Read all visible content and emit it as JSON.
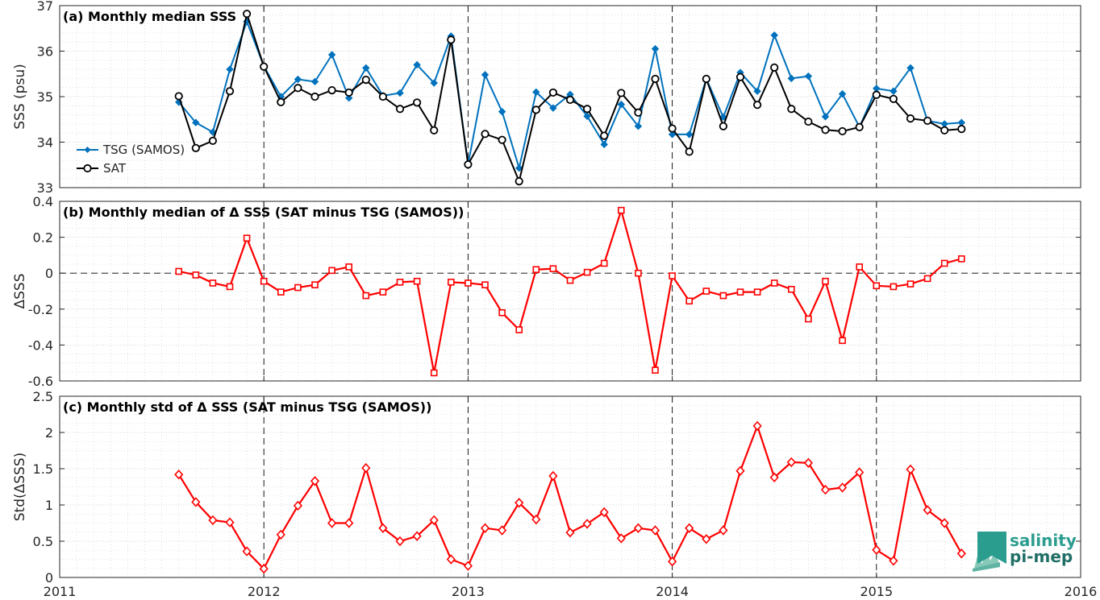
{
  "chart_data": [
    {
      "type": "line",
      "title": "(a) Monthly median SSS",
      "xlabel": "",
      "ylabel": "SSS (psu)",
      "xlim": [
        2011,
        2016
      ],
      "ylim": [
        33,
        37
      ],
      "yticks": [
        33,
        34,
        35,
        36,
        37
      ],
      "grid": true,
      "legend_position": "left",
      "series": [
        {
          "name": "TSG (SAMOS)",
          "color": "#0072BD",
          "marker": "diamond",
          "x": [
            "2011-08",
            "2011-09",
            "2011-10",
            "2011-11",
            "2011-12",
            "2012-01",
            "2012-02",
            "2012-03",
            "2012-04",
            "2012-05",
            "2012-06",
            "2012-07",
            "2012-08",
            "2012-09",
            "2012-10",
            "2012-11",
            "2012-12",
            "2013-01",
            "2013-02",
            "2013-03",
            "2013-04",
            "2013-05",
            "2013-06",
            "2013-07",
            "2013-08",
            "2013-09",
            "2013-10",
            "2013-11",
            "2013-12",
            "2014-01",
            "2014-02",
            "2014-03",
            "2014-04",
            "2014-05",
            "2014-06",
            "2014-07",
            "2014-08",
            "2014-09",
            "2014-10",
            "2014-11",
            "2014-12",
            "2015-01",
            "2015-02",
            "2015-03",
            "2015-04",
            "2015-05",
            "2015-06"
          ],
          "values": [
            34.88,
            34.43,
            34.22,
            35.6,
            36.65,
            35.67,
            35.0,
            35.38,
            35.33,
            35.92,
            34.97,
            35.63,
            35.02,
            35.08,
            35.7,
            35.3,
            36.33,
            33.51,
            35.48,
            34.67,
            33.43,
            35.1,
            34.75,
            35.05,
            34.57,
            33.95,
            34.83,
            34.35,
            36.05,
            34.17,
            34.17,
            35.39,
            34.55,
            35.53,
            35.12,
            36.35,
            35.4,
            35.45,
            34.56,
            35.06,
            34.33,
            35.18,
            35.12,
            35.63,
            34.47,
            34.4,
            34.43
          ]
        },
        {
          "name": "SAT",
          "color": "#000000",
          "marker": "circle",
          "x": [
            "2011-08",
            "2011-09",
            "2011-10",
            "2011-11",
            "2011-12",
            "2012-01",
            "2012-02",
            "2012-03",
            "2012-04",
            "2012-05",
            "2012-06",
            "2012-07",
            "2012-08",
            "2012-09",
            "2012-10",
            "2012-11",
            "2012-12",
            "2013-01",
            "2013-02",
            "2013-03",
            "2013-04",
            "2013-05",
            "2013-06",
            "2013-07",
            "2013-08",
            "2013-09",
            "2013-10",
            "2013-11",
            "2013-12",
            "2014-01",
            "2014-02",
            "2014-03",
            "2014-04",
            "2014-05",
            "2014-06",
            "2014-07",
            "2014-08",
            "2014-09",
            "2014-10",
            "2014-11",
            "2014-12",
            "2015-01",
            "2015-02",
            "2015-03",
            "2015-04",
            "2015-05",
            "2015-06"
          ],
          "values": [
            35.01,
            33.87,
            34.03,
            35.12,
            36.82,
            35.66,
            34.88,
            35.19,
            35.0,
            35.14,
            35.09,
            35.37,
            35.0,
            34.73,
            34.87,
            34.26,
            36.25,
            33.51,
            34.18,
            34.05,
            33.14,
            34.71,
            35.09,
            34.93,
            34.73,
            34.14,
            35.08,
            34.65,
            35.39,
            34.3,
            33.79,
            35.39,
            34.35,
            35.43,
            34.82,
            35.64,
            34.73,
            34.45,
            34.27,
            34.24,
            34.33,
            35.04,
            34.95,
            34.52,
            34.47,
            34.26,
            34.29
          ]
        }
      ]
    },
    {
      "type": "line",
      "title": "(b) Monthly median of Δ SSS (SAT minus TSG (SAMOS))",
      "xlabel": "",
      "ylabel": "ΔSSS",
      "xlim": [
        2011,
        2016
      ],
      "ylim": [
        -0.6,
        0.4
      ],
      "yticks": [
        -0.6,
        -0.4,
        -0.2,
        0,
        0.2,
        0.4
      ],
      "grid": true,
      "zero_line": true,
      "series": [
        {
          "name": "",
          "color": "#FF0000",
          "marker": "square",
          "x": [
            "2011-08",
            "2011-09",
            "2011-10",
            "2011-11",
            "2011-12",
            "2012-01",
            "2012-02",
            "2012-03",
            "2012-04",
            "2012-05",
            "2012-06",
            "2012-07",
            "2012-08",
            "2012-09",
            "2012-10",
            "2012-11",
            "2012-12",
            "2013-01",
            "2013-02",
            "2013-03",
            "2013-04",
            "2013-05",
            "2013-06",
            "2013-07",
            "2013-08",
            "2013-09",
            "2013-10",
            "2013-11",
            "2013-12",
            "2014-01",
            "2014-02",
            "2014-03",
            "2014-04",
            "2014-05",
            "2014-06",
            "2014-07",
            "2014-08",
            "2014-09",
            "2014-10",
            "2014-11",
            "2014-12",
            "2015-01",
            "2015-02",
            "2015-03",
            "2015-04",
            "2015-05",
            "2015-06"
          ],
          "values": [
            0.01,
            -0.01,
            -0.055,
            -0.075,
            0.195,
            -0.045,
            -0.105,
            -0.08,
            -0.065,
            0.015,
            0.035,
            -0.125,
            -0.105,
            -0.05,
            -0.045,
            -0.555,
            -0.05,
            -0.055,
            -0.065,
            -0.22,
            -0.315,
            0.02,
            0.025,
            -0.04,
            0.005,
            0.055,
            0.35,
            0.0,
            -0.54,
            -0.015,
            -0.155,
            -0.1,
            -0.125,
            -0.105,
            -0.105,
            -0.055,
            -0.09,
            -0.255,
            -0.045,
            -0.375,
            0.035,
            -0.07,
            -0.075,
            -0.06,
            -0.03,
            0.055,
            0.08
          ]
        }
      ]
    },
    {
      "type": "line",
      "title": "(c) Monthly std of Δ SSS (SAT minus TSG (SAMOS))",
      "xlabel": "",
      "ylabel": "Std(ΔSSS)",
      "xlim": [
        2011,
        2016
      ],
      "ylim": [
        0,
        2.5
      ],
      "yticks": [
        0,
        0.5,
        1,
        1.5,
        2,
        2.5
      ],
      "xticks": [
        2011,
        2012,
        2013,
        2014,
        2015,
        2016
      ],
      "grid": true,
      "series": [
        {
          "name": "",
          "color": "#FF0000",
          "marker": "diamond-open",
          "x": [
            "2011-08",
            "2011-09",
            "2011-10",
            "2011-11",
            "2011-12",
            "2012-01",
            "2012-02",
            "2012-03",
            "2012-04",
            "2012-05",
            "2012-06",
            "2012-07",
            "2012-08",
            "2012-09",
            "2012-10",
            "2012-11",
            "2012-12",
            "2013-01",
            "2013-02",
            "2013-03",
            "2013-04",
            "2013-05",
            "2013-06",
            "2013-07",
            "2013-08",
            "2013-09",
            "2013-10",
            "2013-11",
            "2013-12",
            "2014-01",
            "2014-02",
            "2014-03",
            "2014-04",
            "2014-05",
            "2014-06",
            "2014-07",
            "2014-08",
            "2014-09",
            "2014-10",
            "2014-11",
            "2014-12",
            "2015-01",
            "2015-02",
            "2015-03",
            "2015-04",
            "2015-05",
            "2015-06"
          ],
          "values": [
            1.42,
            1.04,
            0.79,
            0.76,
            0.36,
            0.12,
            0.59,
            0.99,
            1.33,
            0.75,
            0.75,
            1.51,
            0.68,
            0.5,
            0.57,
            0.79,
            0.25,
            0.16,
            0.68,
            0.65,
            1.03,
            0.8,
            1.4,
            0.62,
            0.74,
            0.9,
            0.54,
            0.68,
            0.65,
            0.22,
            0.68,
            0.53,
            0.65,
            1.47,
            2.09,
            1.38,
            1.59,
            1.58,
            1.21,
            1.24,
            1.45,
            0.38,
            0.23,
            1.49,
            0.93,
            0.75,
            0.33
          ]
        }
      ]
    }
  ],
  "logo": {
    "line1": "salinity",
    "line2": "pi-mep",
    "color1": "#2a9d8f",
    "color2": "#1f6f66"
  }
}
